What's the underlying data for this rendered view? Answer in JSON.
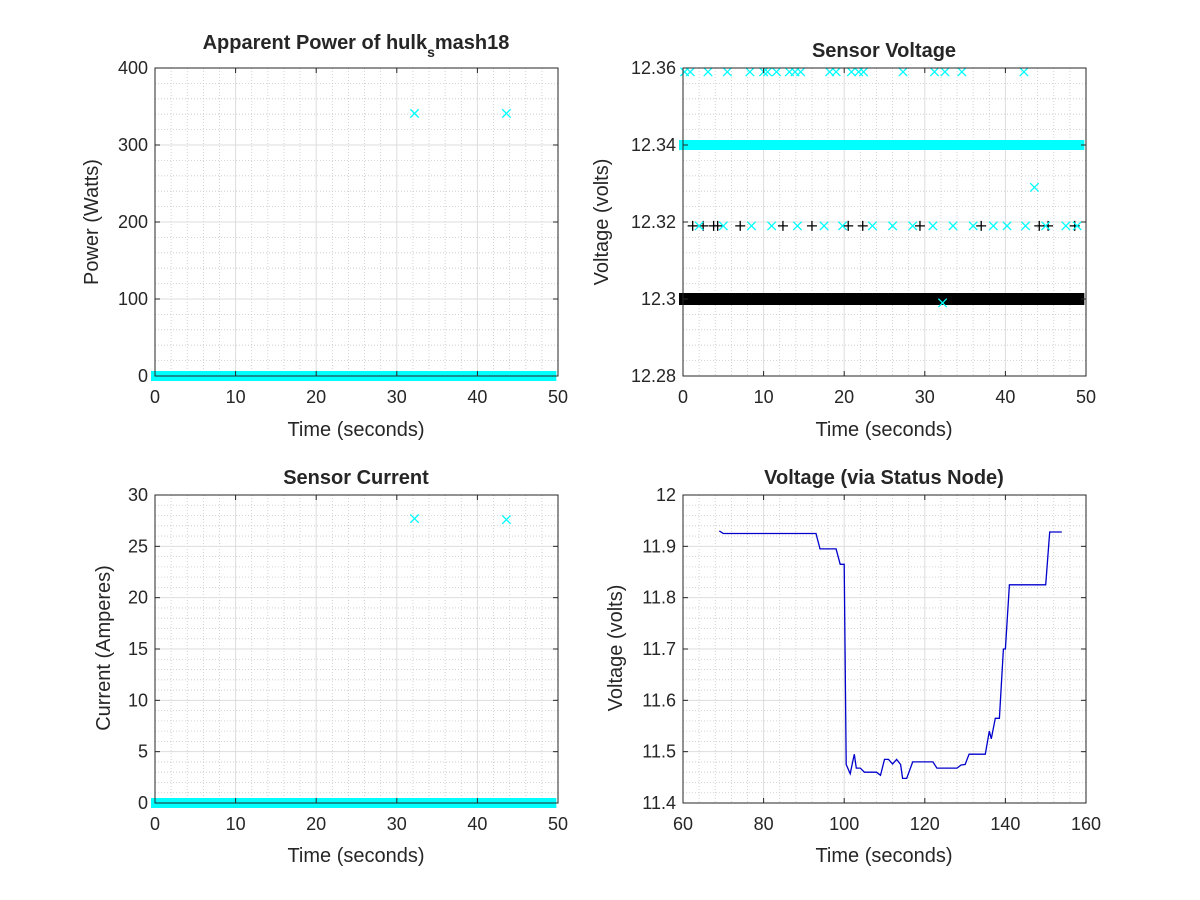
{
  "colors": {
    "cyan": "#00FFFF",
    "black": "#000000",
    "blue": "#0000CC",
    "major_grid": "#DDDDDD",
    "minor_grid": "#C8C8C8",
    "axis": "#262626"
  },
  "chart_data": [
    {
      "type": "scatter",
      "title": "Apparent Power of hulk",
      "title_subscript": "s",
      "title_suffix": "mash18",
      "xlabel": "Time (seconds)",
      "ylabel": "Power (Watts)",
      "xlim": [
        0,
        50
      ],
      "ylim": [
        0,
        400
      ],
      "xticks": [
        0,
        10,
        20,
        30,
        40,
        50
      ],
      "yticks": [
        0,
        100,
        200,
        300,
        400
      ],
      "grid": true,
      "minor_grid": true,
      "series": [
        {
          "color": "cyan",
          "marker": "x",
          "dense_band": {
            "y": 0,
            "x_from": 0,
            "x_to": 49.3
          },
          "points": [
            [
              32.2,
              341
            ],
            [
              43.6,
              341
            ]
          ]
        }
      ]
    },
    {
      "type": "scatter",
      "title": "Sensor Voltage",
      "xlabel": "Time (seconds)",
      "ylabel": "Voltage (volts)",
      "xlim": [
        0,
        50
      ],
      "ylim": [
        12.28,
        12.36
      ],
      "xticks": [
        0,
        10,
        20,
        30,
        40,
        50
      ],
      "yticks": [
        12.28,
        12.3,
        12.32,
        12.34,
        12.36
      ],
      "ytick_labels": [
        "12.28",
        "12.3",
        "12.32",
        "12.34",
        "12.36"
      ],
      "grid": true,
      "minor_grid": true,
      "series": [
        {
          "color": "black",
          "marker": "+",
          "dense_band": {
            "y": 12.3,
            "x_from": 0,
            "x_to": 49.3
          },
          "points": [
            [
              1.2,
              12.319
            ],
            [
              2.5,
              12.319
            ],
            [
              3.8,
              12.319
            ],
            [
              4.3,
              12.319
            ],
            [
              7.1,
              12.319
            ],
            [
              12.4,
              12.319
            ],
            [
              16.0,
              12.319
            ],
            [
              20.5,
              12.319
            ],
            [
              22.3,
              12.319
            ],
            [
              29.4,
              12.319
            ],
            [
              37.0,
              12.319
            ],
            [
              44.2,
              12.319
            ],
            [
              45.3,
              12.319
            ],
            [
              48.6,
              12.319
            ]
          ]
        },
        {
          "color": "cyan",
          "marker": "x",
          "dense_band": {
            "y": 12.34,
            "x_from": 0,
            "x_to": 49.3
          },
          "points": [
            [
              0.2,
              12.359
            ],
            [
              0.9,
              12.359
            ],
            [
              3.1,
              12.359
            ],
            [
              5.5,
              12.359
            ],
            [
              8.3,
              12.359
            ],
            [
              10.0,
              12.359
            ],
            [
              10.5,
              12.359
            ],
            [
              11.6,
              12.359
            ],
            [
              13.2,
              12.359
            ],
            [
              13.9,
              12.359
            ],
            [
              14.6,
              12.359
            ],
            [
              18.2,
              12.359
            ],
            [
              19.0,
              12.359
            ],
            [
              20.9,
              12.359
            ],
            [
              21.8,
              12.359
            ],
            [
              22.4,
              12.359
            ],
            [
              27.3,
              12.359
            ],
            [
              31.2,
              12.359
            ],
            [
              32.5,
              12.359
            ],
            [
              34.6,
              12.359
            ],
            [
              42.3,
              12.359
            ],
            [
              43.6,
              12.329
            ],
            [
              32.2,
              12.299
            ],
            [
              2.0,
              12.319
            ],
            [
              5.0,
              12.319
            ],
            [
              8.5,
              12.319
            ],
            [
              11.0,
              12.319
            ],
            [
              14.2,
              12.319
            ],
            [
              17.5,
              12.319
            ],
            [
              19.8,
              12.319
            ],
            [
              23.5,
              12.319
            ],
            [
              26.0,
              12.319
            ],
            [
              28.5,
              12.319
            ],
            [
              31.0,
              12.319
            ],
            [
              33.5,
              12.319
            ],
            [
              36.0,
              12.319
            ],
            [
              38.5,
              12.319
            ],
            [
              40.2,
              12.319
            ],
            [
              42.5,
              12.319
            ],
            [
              45.0,
              12.319
            ],
            [
              47.5,
              12.319
            ],
            [
              48.9,
              12.319
            ]
          ]
        }
      ]
    },
    {
      "type": "scatter",
      "title": "Sensor Current",
      "xlabel": "Time (seconds)",
      "ylabel": "Current (Amperes)",
      "xlim": [
        0,
        50
      ],
      "ylim": [
        0,
        30
      ],
      "xticks": [
        0,
        10,
        20,
        30,
        40,
        50
      ],
      "yticks": [
        0,
        5,
        10,
        15,
        20,
        25,
        30
      ],
      "grid": true,
      "minor_grid": true,
      "series": [
        {
          "color": "cyan",
          "marker": "x",
          "dense_band": {
            "y": 0,
            "x_from": 0,
            "x_to": 49.3
          },
          "points": [
            [
              32.2,
              27.7
            ],
            [
              43.6,
              27.6
            ]
          ]
        }
      ]
    },
    {
      "type": "line",
      "title": "Voltage (via Status Node)",
      "xlabel": "Time (seconds)",
      "ylabel": "Voltage (volts)",
      "xlim": [
        60,
        160
      ],
      "ylim": [
        11.4,
        12
      ],
      "xticks": [
        60,
        80,
        100,
        120,
        140,
        160
      ],
      "yticks": [
        11.4,
        11.5,
        11.6,
        11.7,
        11.8,
        11.9,
        12
      ],
      "ytick_labels": [
        "11.4",
        "11.5",
        "11.6",
        "11.7",
        "11.8",
        "11.9",
        "12"
      ],
      "grid": true,
      "minor_grid": true,
      "series": [
        {
          "color": "blue",
          "points": [
            [
              69,
              11.93
            ],
            [
              70,
              11.925
            ],
            [
              93,
              11.925
            ],
            [
              94,
              11.895
            ],
            [
              98,
              11.895
            ],
            [
              99,
              11.865
            ],
            [
              100,
              11.865
            ],
            [
              100.5,
              11.475
            ],
            [
              101.5,
              11.457
            ],
            [
              102.5,
              11.495
            ],
            [
              103,
              11.468
            ],
            [
              104,
              11.468
            ],
            [
              105,
              11.46
            ],
            [
              108,
              11.46
            ],
            [
              109,
              11.454
            ],
            [
              110,
              11.485
            ],
            [
              111,
              11.485
            ],
            [
              112,
              11.476
            ],
            [
              113,
              11.485
            ],
            [
              114,
              11.475
            ],
            [
              114.5,
              11.448
            ],
            [
              115.5,
              11.448
            ],
            [
              117,
              11.48
            ],
            [
              122,
              11.48
            ],
            [
              123,
              11.468
            ],
            [
              128,
              11.468
            ],
            [
              129,
              11.474
            ],
            [
              130,
              11.475
            ],
            [
              131,
              11.495
            ],
            [
              135,
              11.495
            ],
            [
              136,
              11.54
            ],
            [
              136.5,
              11.525
            ],
            [
              137.5,
              11.565
            ],
            [
              138.5,
              11.565
            ],
            [
              139.5,
              11.7
            ],
            [
              140,
              11.7
            ],
            [
              141,
              11.825
            ],
            [
              150,
              11.825
            ],
            [
              151,
              11.928
            ],
            [
              154,
              11.928
            ]
          ]
        }
      ]
    }
  ]
}
